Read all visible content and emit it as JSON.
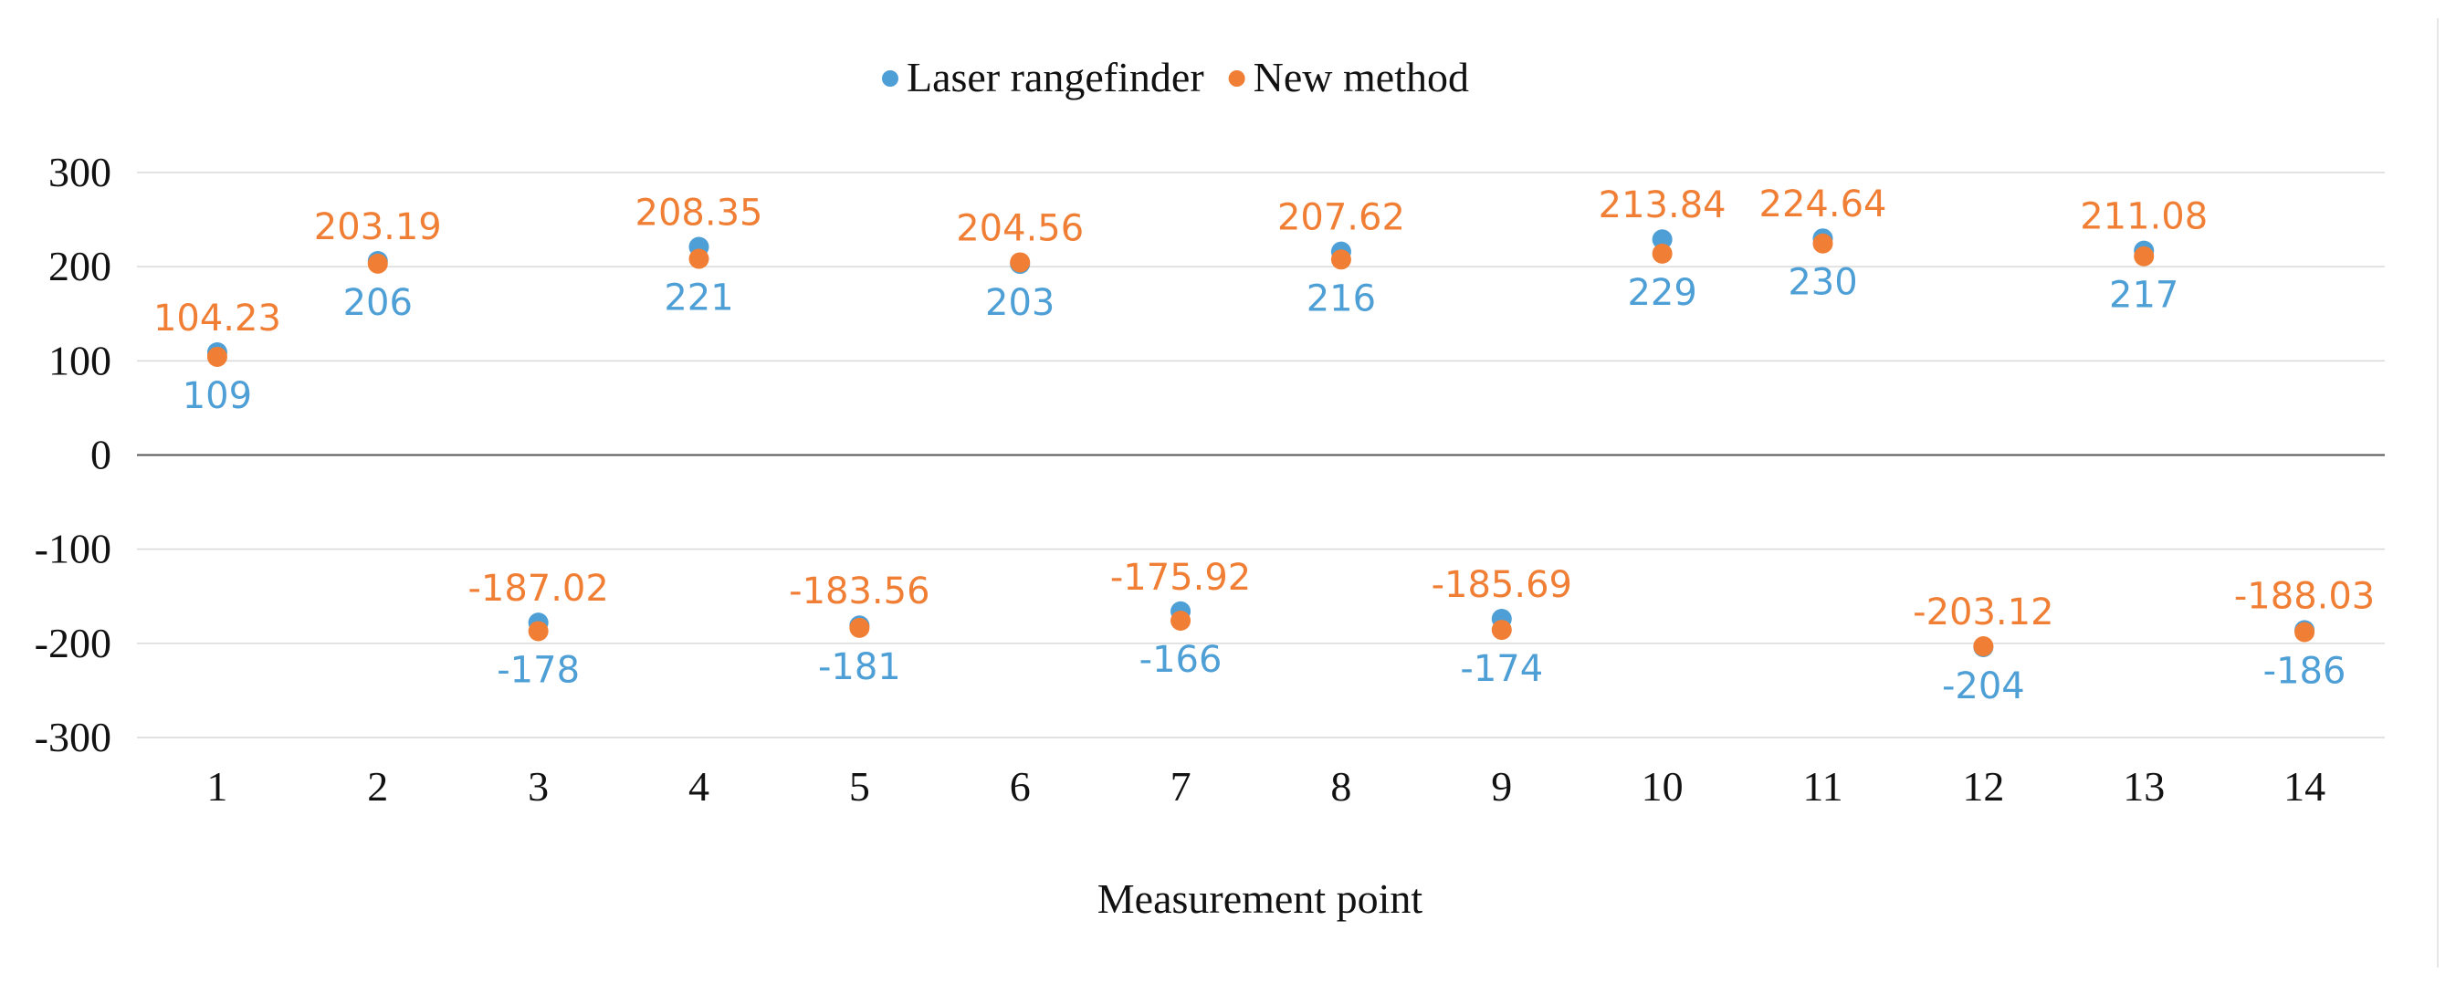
{
  "chart_data": {
    "type": "scatter",
    "title": "",
    "xlabel": "Measurement point",
    "ylabel": "",
    "x": [
      1,
      2,
      3,
      4,
      5,
      6,
      7,
      8,
      9,
      10,
      11,
      12,
      13,
      14
    ],
    "ylim": [
      -300,
      300
    ],
    "yticks": [
      300,
      200,
      100,
      0,
      -100,
      -200,
      -300
    ],
    "grid": true,
    "legend_position": "top-center",
    "series": [
      {
        "name": "Laser rangefinder",
        "color": "#4E9FD6",
        "values": [
          109,
          206,
          -178,
          221,
          -181,
          203,
          -166,
          216,
          -174,
          229,
          230,
          -204,
          217,
          -186
        ],
        "labels": [
          "109",
          "206",
          "-178",
          "221",
          "-181",
          "203",
          "-166",
          "216",
          "-174",
          "229",
          "230",
          "-204",
          "217",
          "-186"
        ]
      },
      {
        "name": "New method",
        "color": "#F07F35",
        "values": [
          104.23,
          203.19,
          -187.02,
          208.35,
          -183.56,
          204.56,
          -175.92,
          207.62,
          -185.69,
          213.84,
          224.64,
          -203.12,
          211.08,
          -188.03
        ],
        "labels": [
          "104.23",
          "203.19",
          "-187.02",
          "208.35",
          "-183.56",
          "204.56",
          "-175.92",
          "207.62",
          "-185.69",
          "213.84",
          "224.64",
          "-203.12",
          "211.08",
          "-188.03"
        ]
      }
    ]
  }
}
